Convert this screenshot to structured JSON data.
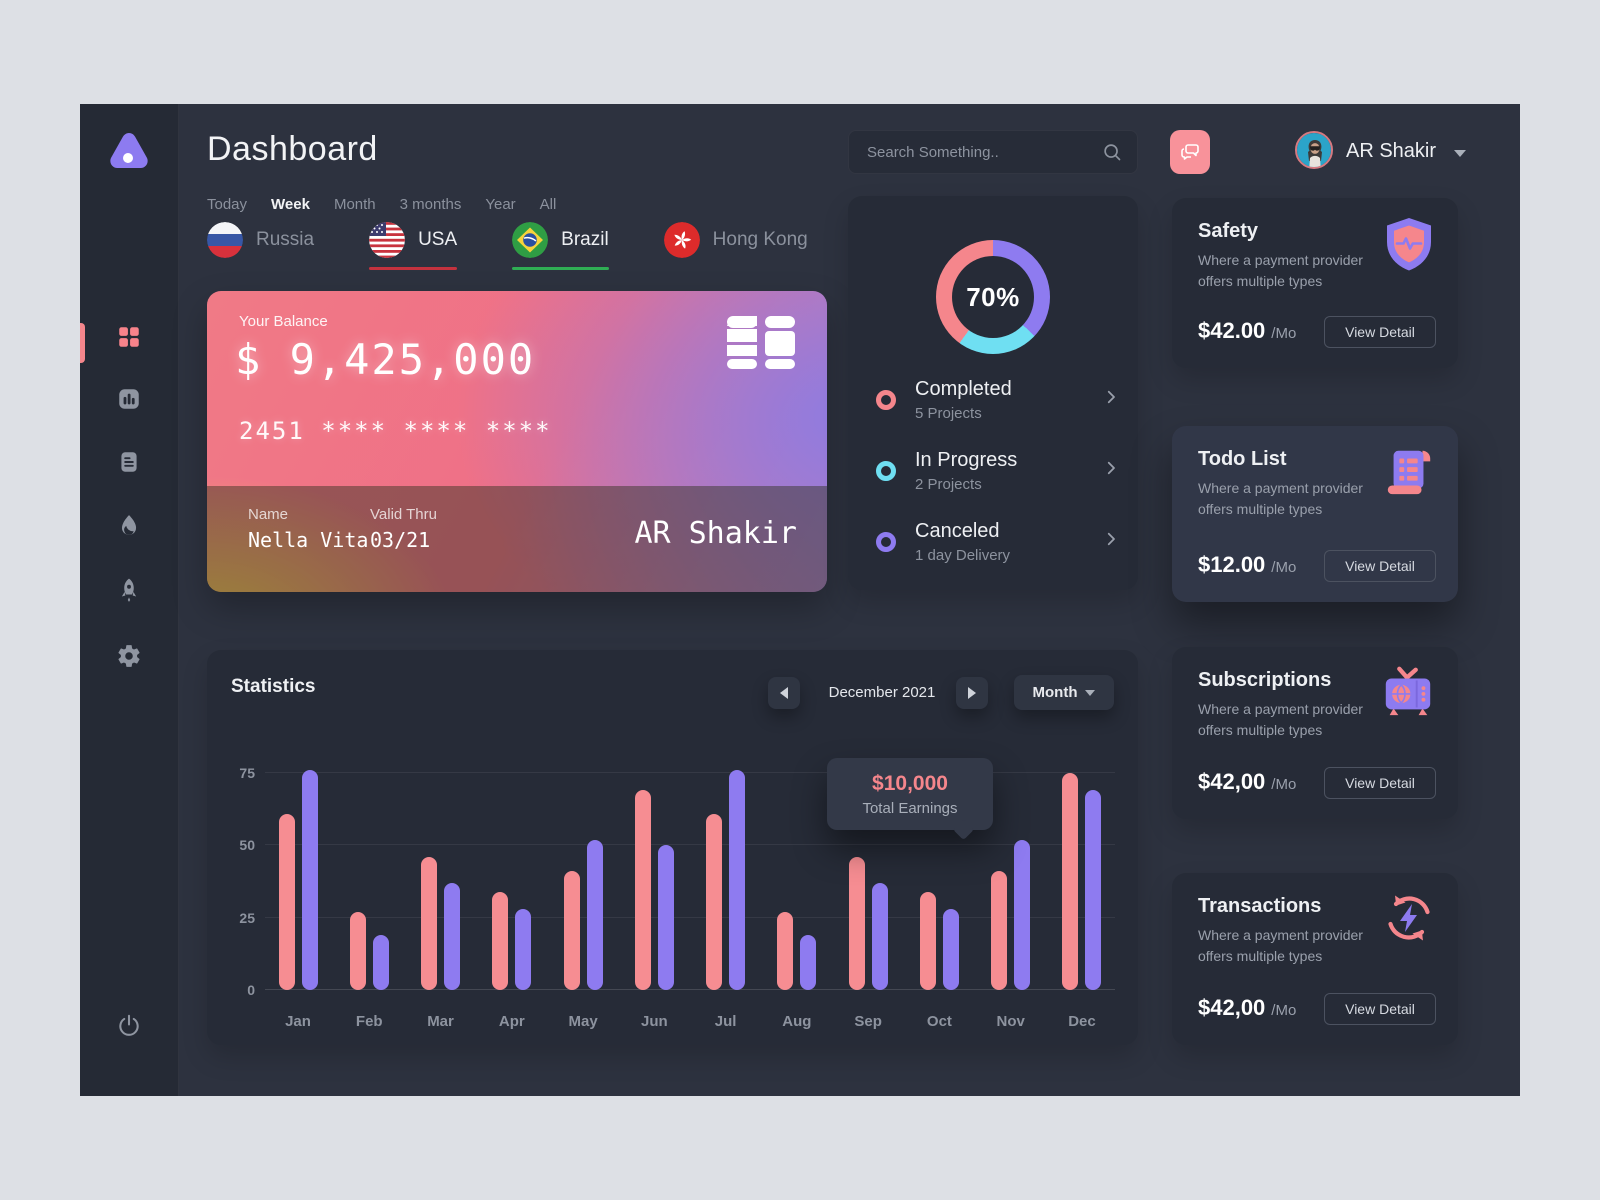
{
  "header": {
    "title": "Dashboard",
    "search": {
      "placeholder": "Search Something.."
    },
    "user": {
      "name": "AR Shakir"
    }
  },
  "time_filters": {
    "items": [
      "Today",
      "Week",
      "Month",
      "3 months",
      "Year",
      "All"
    ],
    "active": "Week"
  },
  "countries": [
    {
      "label": "Russia",
      "active": false,
      "underline_color": null
    },
    {
      "label": "USA",
      "active": true,
      "underline_color": "#c4323e"
    },
    {
      "label": "Brazil",
      "active": true,
      "underline_color": "#2fae54"
    },
    {
      "label": "Hong Kong",
      "active": false,
      "underline_color": null
    }
  ],
  "balance_card": {
    "balance_label": "Your Balance",
    "balance": "$ 9,425,000",
    "card_number": "2451 **** **** ****",
    "name_label": "Name",
    "name": "Nella Vita",
    "valid_label": "Valid Thru",
    "valid": "03/21",
    "holder": "AR Shakir"
  },
  "projects_panel": {
    "percent": "70%",
    "items": [
      {
        "title": "Completed",
        "subtitle": "5 Projects",
        "color": "#f5868c"
      },
      {
        "title": "In Progress",
        "subtitle": "2 Projects",
        "color": "#6fdff2"
      },
      {
        "title": "Canceled",
        "subtitle": "1 day Delivery",
        "color": "#8e7bf0"
      }
    ]
  },
  "info_cards": [
    {
      "title": "Safety",
      "description": "Where a payment provider offers multiple types",
      "price": "$42.00",
      "per": "/Mo",
      "button_label": "View Detail",
      "icon": "shield-icon"
    },
    {
      "title": "Todo List",
      "description": "Where a payment provider offers multiple types",
      "price": "$12.00",
      "per": "/Mo",
      "button_label": "View Detail",
      "icon": "scroll-icon"
    },
    {
      "title": "Subscriptions",
      "description": "Where a payment provider offers multiple types",
      "price": "$42,00",
      "per": "/Mo",
      "button_label": "View Detail",
      "icon": "tv-icon"
    },
    {
      "title": "Transactions",
      "description": "Where a payment provider offers multiple types",
      "price": "$42,00",
      "per": "/Mo",
      "button_label": "View Detail",
      "icon": "sync-bolt-icon"
    }
  ],
  "statistics": {
    "title": "Statistics",
    "period": "December 2021",
    "mode": "Month",
    "tooltip": {
      "value": "$10,000",
      "label": "Total Earnings"
    }
  },
  "chart_data": [
    {
      "type": "bar",
      "title": "Statistics",
      "categories": [
        "Jan",
        "Feb",
        "Mar",
        "Apr",
        "May",
        "Jun",
        "Jul",
        "Aug",
        "Sep",
        "Oct",
        "Nov",
        "Dec"
      ],
      "series": [
        {
          "name": "earnings-coral",
          "color": "#f68d92",
          "values": [
            61,
            27,
            46,
            34,
            41,
            69,
            61,
            27,
            46,
            34,
            41,
            75
          ]
        },
        {
          "name": "earnings-purple",
          "color": "#8e7bf0",
          "values": [
            76,
            19,
            37,
            28,
            52,
            50,
            76,
            19,
            37,
            28,
            52,
            69
          ]
        }
      ],
      "yticks": [
        0,
        25,
        50,
        75
      ],
      "ylim": [
        0,
        80
      ],
      "grid": true,
      "legend_position": "none"
    },
    {
      "type": "pie",
      "center_label": "70%",
      "slices": [
        {
          "label": "Canceled",
          "value": 37,
          "color": "#8e7bf0"
        },
        {
          "label": "In Progress",
          "value": 23,
          "color": "#6fdff2"
        },
        {
          "label": "Completed",
          "value": 40,
          "color": "#f5868c"
        }
      ]
    }
  ]
}
